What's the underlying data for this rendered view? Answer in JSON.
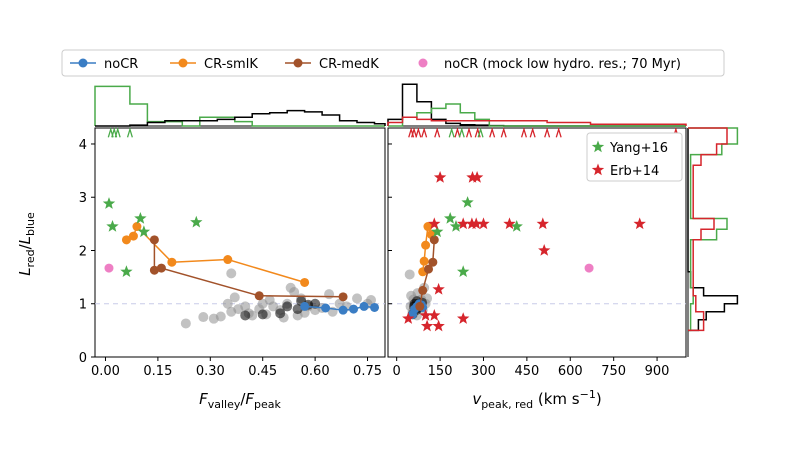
{
  "legend_top": [
    {
      "label": "noCR",
      "color": "#3a7dc4",
      "marker": "circle-line"
    },
    {
      "label": "CR-smlK",
      "color": "#f2891c",
      "marker": "circle-line"
    },
    {
      "label": "CR-medK",
      "color": "#a2522a",
      "marker": "circle-line"
    },
    {
      "label": "noCR (mock low hydro. res.; 70 Myr)",
      "color": "#ee7fc4",
      "marker": "circle"
    }
  ],
  "legend_obs": [
    {
      "label": "Yang+16",
      "color": "#4aaa4a",
      "marker": "star"
    },
    {
      "label": "Erb+14",
      "color": "#d6252c",
      "marker": "star"
    }
  ],
  "colors": {
    "noCR": "#3a7dc4",
    "smlK": "#f2891c",
    "medK": "#a2522a",
    "mock": "#ee7fc4",
    "yang": "#4aaa4a",
    "erb": "#d6252c",
    "gray": "#909090",
    "black": "#000000",
    "refline": "#c8cbe8"
  },
  "chart_data": [
    {
      "id": "left",
      "type": "scatter",
      "xlabel": "F_valley/F_peak",
      "ylabel": "L_red/L_blue",
      "xlim": [
        -0.03,
        0.8
      ],
      "ylim": [
        0,
        4.3
      ],
      "xticks": [
        0.0,
        0.15,
        0.3,
        0.45,
        0.6,
        0.75
      ],
      "xticklabels": [
        "0.00",
        "0.15",
        "0.30",
        "0.45",
        "0.60",
        "0.75"
      ],
      "yticks": [
        0,
        1,
        2,
        3,
        4
      ],
      "yticklabels": [
        "0",
        "1",
        "2",
        "3",
        "4"
      ],
      "reference_line_y": 1.0,
      "series": [
        {
          "key": "gray",
          "points": [
            [
              0.23,
              0.63
            ],
            [
              0.28,
              0.75
            ],
            [
              0.31,
              0.72
            ],
            [
              0.33,
              0.76
            ],
            [
              0.36,
              1.57
            ],
            [
              0.37,
              1.12
            ],
            [
              0.36,
              0.85
            ],
            [
              0.38,
              0.9
            ],
            [
              0.4,
              0.95
            ],
            [
              0.42,
              0.78
            ],
            [
              0.44,
              0.9
            ],
            [
              0.45,
              1.0
            ],
            [
              0.46,
              0.8
            ],
            [
              0.48,
              0.95
            ],
            [
              0.5,
              0.88
            ],
            [
              0.52,
              1.0
            ],
            [
              0.53,
              1.3
            ],
            [
              0.54,
              1.22
            ],
            [
              0.55,
              0.78
            ],
            [
              0.56,
              1.1
            ],
            [
              0.58,
              0.95
            ],
            [
              0.6,
              0.88
            ],
            [
              0.62,
              0.92
            ],
            [
              0.64,
              1.18
            ],
            [
              0.65,
              0.85
            ],
            [
              0.67,
              1.0
            ],
            [
              0.69,
              0.95
            ],
            [
              0.72,
              1.1
            ],
            [
              0.75,
              1.0
            ],
            [
              0.76,
              1.07
            ],
            [
              0.35,
              1.0
            ],
            [
              0.41,
              0.82
            ],
            [
              0.47,
              1.07
            ],
            [
              0.51,
              0.74
            ],
            [
              0.57,
              0.83
            ]
          ]
        },
        {
          "key": "black",
          "points": [
            [
              0.4,
              0.78
            ],
            [
              0.45,
              0.8
            ],
            [
              0.5,
              0.82
            ],
            [
              0.52,
              0.95
            ],
            [
              0.55,
              0.9
            ],
            [
              0.56,
              1.05
            ],
            [
              0.58,
              0.98
            ],
            [
              0.6,
              1.0
            ]
          ]
        },
        {
          "key": "noCR",
          "line": true,
          "points": [
            [
              0.57,
              0.95
            ],
            [
              0.63,
              0.92
            ],
            [
              0.68,
              0.88
            ],
            [
              0.71,
              0.9
            ],
            [
              0.74,
              0.95
            ],
            [
              0.77,
              0.93
            ]
          ]
        },
        {
          "key": "smlK",
          "line": true,
          "points": [
            [
              0.06,
              2.2
            ],
            [
              0.08,
              2.27
            ],
            [
              0.09,
              2.45
            ],
            [
              0.19,
              1.78
            ],
            [
              0.35,
              1.83
            ],
            [
              0.57,
              1.4
            ]
          ]
        },
        {
          "key": "medK",
          "line": true,
          "points": [
            [
              0.14,
              2.2
            ],
            [
              0.14,
              1.63
            ],
            [
              0.16,
              1.67
            ],
            [
              0.44,
              1.15
            ],
            [
              0.68,
              1.13
            ]
          ]
        },
        {
          "key": "mock",
          "points": [
            [
              0.01,
              1.67
            ]
          ]
        },
        {
          "key": "yang",
          "marker": "star",
          "points": [
            [
              0.01,
              2.88
            ],
            [
              0.02,
              2.45
            ],
            [
              0.1,
              2.6
            ],
            [
              0.11,
              2.35
            ],
            [
              0.26,
              2.53
            ],
            [
              0.06,
              1.6
            ]
          ]
        },
        {
          "key": "yang",
          "marker": "caret",
          "points": [
            [
              0.015,
              4.2
            ],
            [
              0.025,
              4.2
            ],
            [
              0.035,
              4.2
            ],
            [
              0.07,
              4.2
            ]
          ]
        }
      ]
    },
    {
      "id": "right",
      "type": "scatter",
      "xlabel": "v_peak, red (km s⁻¹)",
      "ylim": [
        0,
        4.3
      ],
      "xlim": [
        -30,
        1000
      ],
      "xticks": [
        0,
        150,
        300,
        450,
        600,
        750,
        900
      ],
      "xticklabels": [
        "0",
        "150",
        "300",
        "450",
        "600",
        "750",
        "900"
      ],
      "reference_line_y": 1.0,
      "series": [
        {
          "key": "gray",
          "points": [
            [
              45,
              1.55
            ],
            [
              50,
              1.15
            ],
            [
              48,
              0.95
            ],
            [
              55,
              0.85
            ],
            [
              60,
              0.9
            ],
            [
              65,
              1.0
            ],
            [
              70,
              0.78
            ],
            [
              58,
              1.08
            ],
            [
              72,
              1.2
            ],
            [
              80,
              0.95
            ],
            [
              85,
              1.08
            ],
            [
              90,
              0.88
            ],
            [
              95,
              1.3
            ],
            [
              100,
              1.0
            ],
            [
              105,
              1.1
            ]
          ]
        },
        {
          "key": "black",
          "points": [
            [
              55,
              0.8
            ],
            [
              60,
              0.95
            ],
            [
              62,
              1.0
            ],
            [
              68,
              0.88
            ],
            [
              70,
              1.05
            ],
            [
              75,
              0.92
            ],
            [
              78,
              1.0
            ],
            [
              82,
              0.95
            ],
            [
              88,
              1.02
            ]
          ]
        },
        {
          "key": "noCR",
          "line": true,
          "points": [
            [
              55,
              0.8
            ],
            [
              62,
              0.9
            ],
            [
              70,
              0.95
            ],
            [
              78,
              1.0
            ],
            [
              85,
              0.98
            ],
            [
              90,
              0.93
            ]
          ]
        },
        {
          "key": "smlK",
          "line": true,
          "points": [
            [
              90,
              1.6
            ],
            [
              95,
              1.8
            ],
            [
              100,
              2.1
            ],
            [
              108,
              2.45
            ],
            [
              120,
              2.3
            ]
          ]
        },
        {
          "key": "medK",
          "line": true,
          "points": [
            [
              80,
              0.95
            ],
            [
              90,
              1.25
            ],
            [
              110,
              1.65
            ],
            [
              125,
              1.78
            ],
            [
              130,
              2.2
            ]
          ]
        },
        {
          "key": "mock",
          "points": [
            [
              665,
              1.67
            ]
          ]
        },
        {
          "key": "yang",
          "marker": "star",
          "points": [
            [
              140,
              2.35
            ],
            [
              185,
              2.6
            ],
            [
              245,
              2.9
            ],
            [
              205,
              2.45
            ],
            [
              230,
              1.6
            ],
            [
              415,
              2.45
            ]
          ]
        },
        {
          "key": "erb",
          "marker": "star",
          "points": [
            [
              150,
              3.37
            ],
            [
              262,
              3.37
            ],
            [
              278,
              3.37
            ],
            [
              130,
              2.5
            ],
            [
              230,
              2.5
            ],
            [
              260,
              2.5
            ],
            [
              275,
              2.5
            ],
            [
              300,
              2.5
            ],
            [
              390,
              2.5
            ],
            [
              505,
              2.5
            ],
            [
              840,
              2.5
            ],
            [
              510,
              2.0
            ],
            [
              145,
              1.27
            ],
            [
              100,
              0.78
            ],
            [
              130,
              0.78
            ],
            [
              40,
              0.72
            ],
            [
              105,
              0.58
            ],
            [
              145,
              0.58
            ],
            [
              230,
              0.72
            ]
          ]
        },
        {
          "key": "erb",
          "marker": "caret",
          "points": [
            [
              50,
              4.2
            ],
            [
              60,
              4.2
            ],
            [
              75,
              4.2
            ],
            [
              95,
              4.2
            ],
            [
              140,
              4.2
            ],
            [
              210,
              4.2
            ],
            [
              250,
              4.2
            ],
            [
              280,
              4.2
            ],
            [
              330,
              4.2
            ],
            [
              370,
              4.2
            ],
            [
              440,
              4.2
            ],
            [
              470,
              4.2
            ],
            [
              520,
              4.2
            ],
            [
              560,
              4.2
            ],
            [
              965,
              4.2
            ]
          ]
        },
        {
          "key": "yang",
          "marker": "caret",
          "points": [
            [
              190,
              4.2
            ],
            [
              225,
              4.2
            ],
            [
              290,
              4.2
            ]
          ]
        }
      ]
    },
    {
      "id": "top-hist-left",
      "type": "histogram",
      "orientation": "vertical",
      "xlim": [
        -0.03,
        0.8
      ],
      "bin_edges": [
        -0.03,
        0.02,
        0.07,
        0.12,
        0.17,
        0.22,
        0.27,
        0.32,
        0.37,
        0.42,
        0.47,
        0.52,
        0.57,
        0.62,
        0.67,
        0.72,
        0.77,
        0.8
      ],
      "series": [
        {
          "key": "yang",
          "counts": [
            0.9,
            0.9,
            0.5,
            0.1,
            0.1,
            0.0,
            0.2,
            0.2,
            0.1,
            0.0,
            0.0,
            0.0,
            0.0,
            0.0,
            0.0,
            0.0,
            0.0
          ]
        },
        {
          "key": "black",
          "counts": [
            0.0,
            0.0,
            0.02,
            0.08,
            0.12,
            0.12,
            0.12,
            0.15,
            0.2,
            0.28,
            0.3,
            0.35,
            0.32,
            0.25,
            0.12,
            0.08,
            0.05
          ]
        }
      ]
    },
    {
      "id": "top-hist-right",
      "type": "histogram",
      "orientation": "vertical",
      "xlim": [
        -30,
        1000
      ],
      "bin_edges": [
        -30,
        20,
        70,
        120,
        170,
        220,
        270,
        320,
        370,
        420,
        470,
        520,
        570,
        620,
        670,
        720,
        770,
        820,
        870,
        920,
        970,
        1000
      ],
      "series": [
        {
          "key": "black",
          "counts": [
            0.15,
            0.95,
            0.55,
            0.15,
            0.06,
            0.03,
            0.02,
            0.01,
            0.0,
            0.0,
            0.0,
            0.0,
            0.0,
            0.0,
            0.0,
            0.0,
            0.0,
            0.0,
            0.0,
            0.0,
            0.0
          ]
        },
        {
          "key": "yang",
          "counts": [
            0.0,
            0.2,
            0.3,
            0.4,
            0.5,
            0.3,
            0.15,
            0.0,
            0.0,
            0.0,
            0.0,
            0.0,
            0.0,
            0.0,
            0.0,
            0.0,
            0.0,
            0.0,
            0.0,
            0.0,
            0.0
          ]
        },
        {
          "key": "erb",
          "counts": [
            0.08,
            0.2,
            0.15,
            0.12,
            0.12,
            0.12,
            0.12,
            0.12,
            0.12,
            0.12,
            0.12,
            0.08,
            0.08,
            0.08,
            0.04,
            0.04,
            0.04,
            0.04,
            0.04,
            0.04,
            0.04
          ]
        }
      ]
    },
    {
      "id": "side-hist",
      "type": "histogram",
      "orientation": "horizontal",
      "ylim": [
        0,
        4.3
      ],
      "bin_edges": [
        0.5,
        0.7,
        0.85,
        1.0,
        1.15,
        1.3,
        1.6,
        2.2,
        2.4,
        2.6,
        3.6,
        3.8,
        4.0,
        4.3
      ],
      "series": [
        {
          "key": "black",
          "counts": [
            0.2,
            0.35,
            0.7,
            0.95,
            0.3,
            0.05,
            0.0,
            0.0,
            0.0,
            0.0,
            0.0,
            0.0,
            0.0
          ]
        },
        {
          "key": "yang",
          "counts": [
            0.05,
            0.05,
            0.05,
            0.1,
            0.1,
            0.05,
            0.05,
            0.55,
            0.75,
            0.05,
            0.05,
            0.65,
            0.95
          ]
        },
        {
          "key": "erb",
          "counts": [
            0.3,
            0.3,
            0.15,
            0.15,
            0.1,
            0.1,
            0.1,
            0.25,
            0.5,
            0.1,
            0.25,
            0.55,
            0.75
          ]
        }
      ]
    }
  ]
}
